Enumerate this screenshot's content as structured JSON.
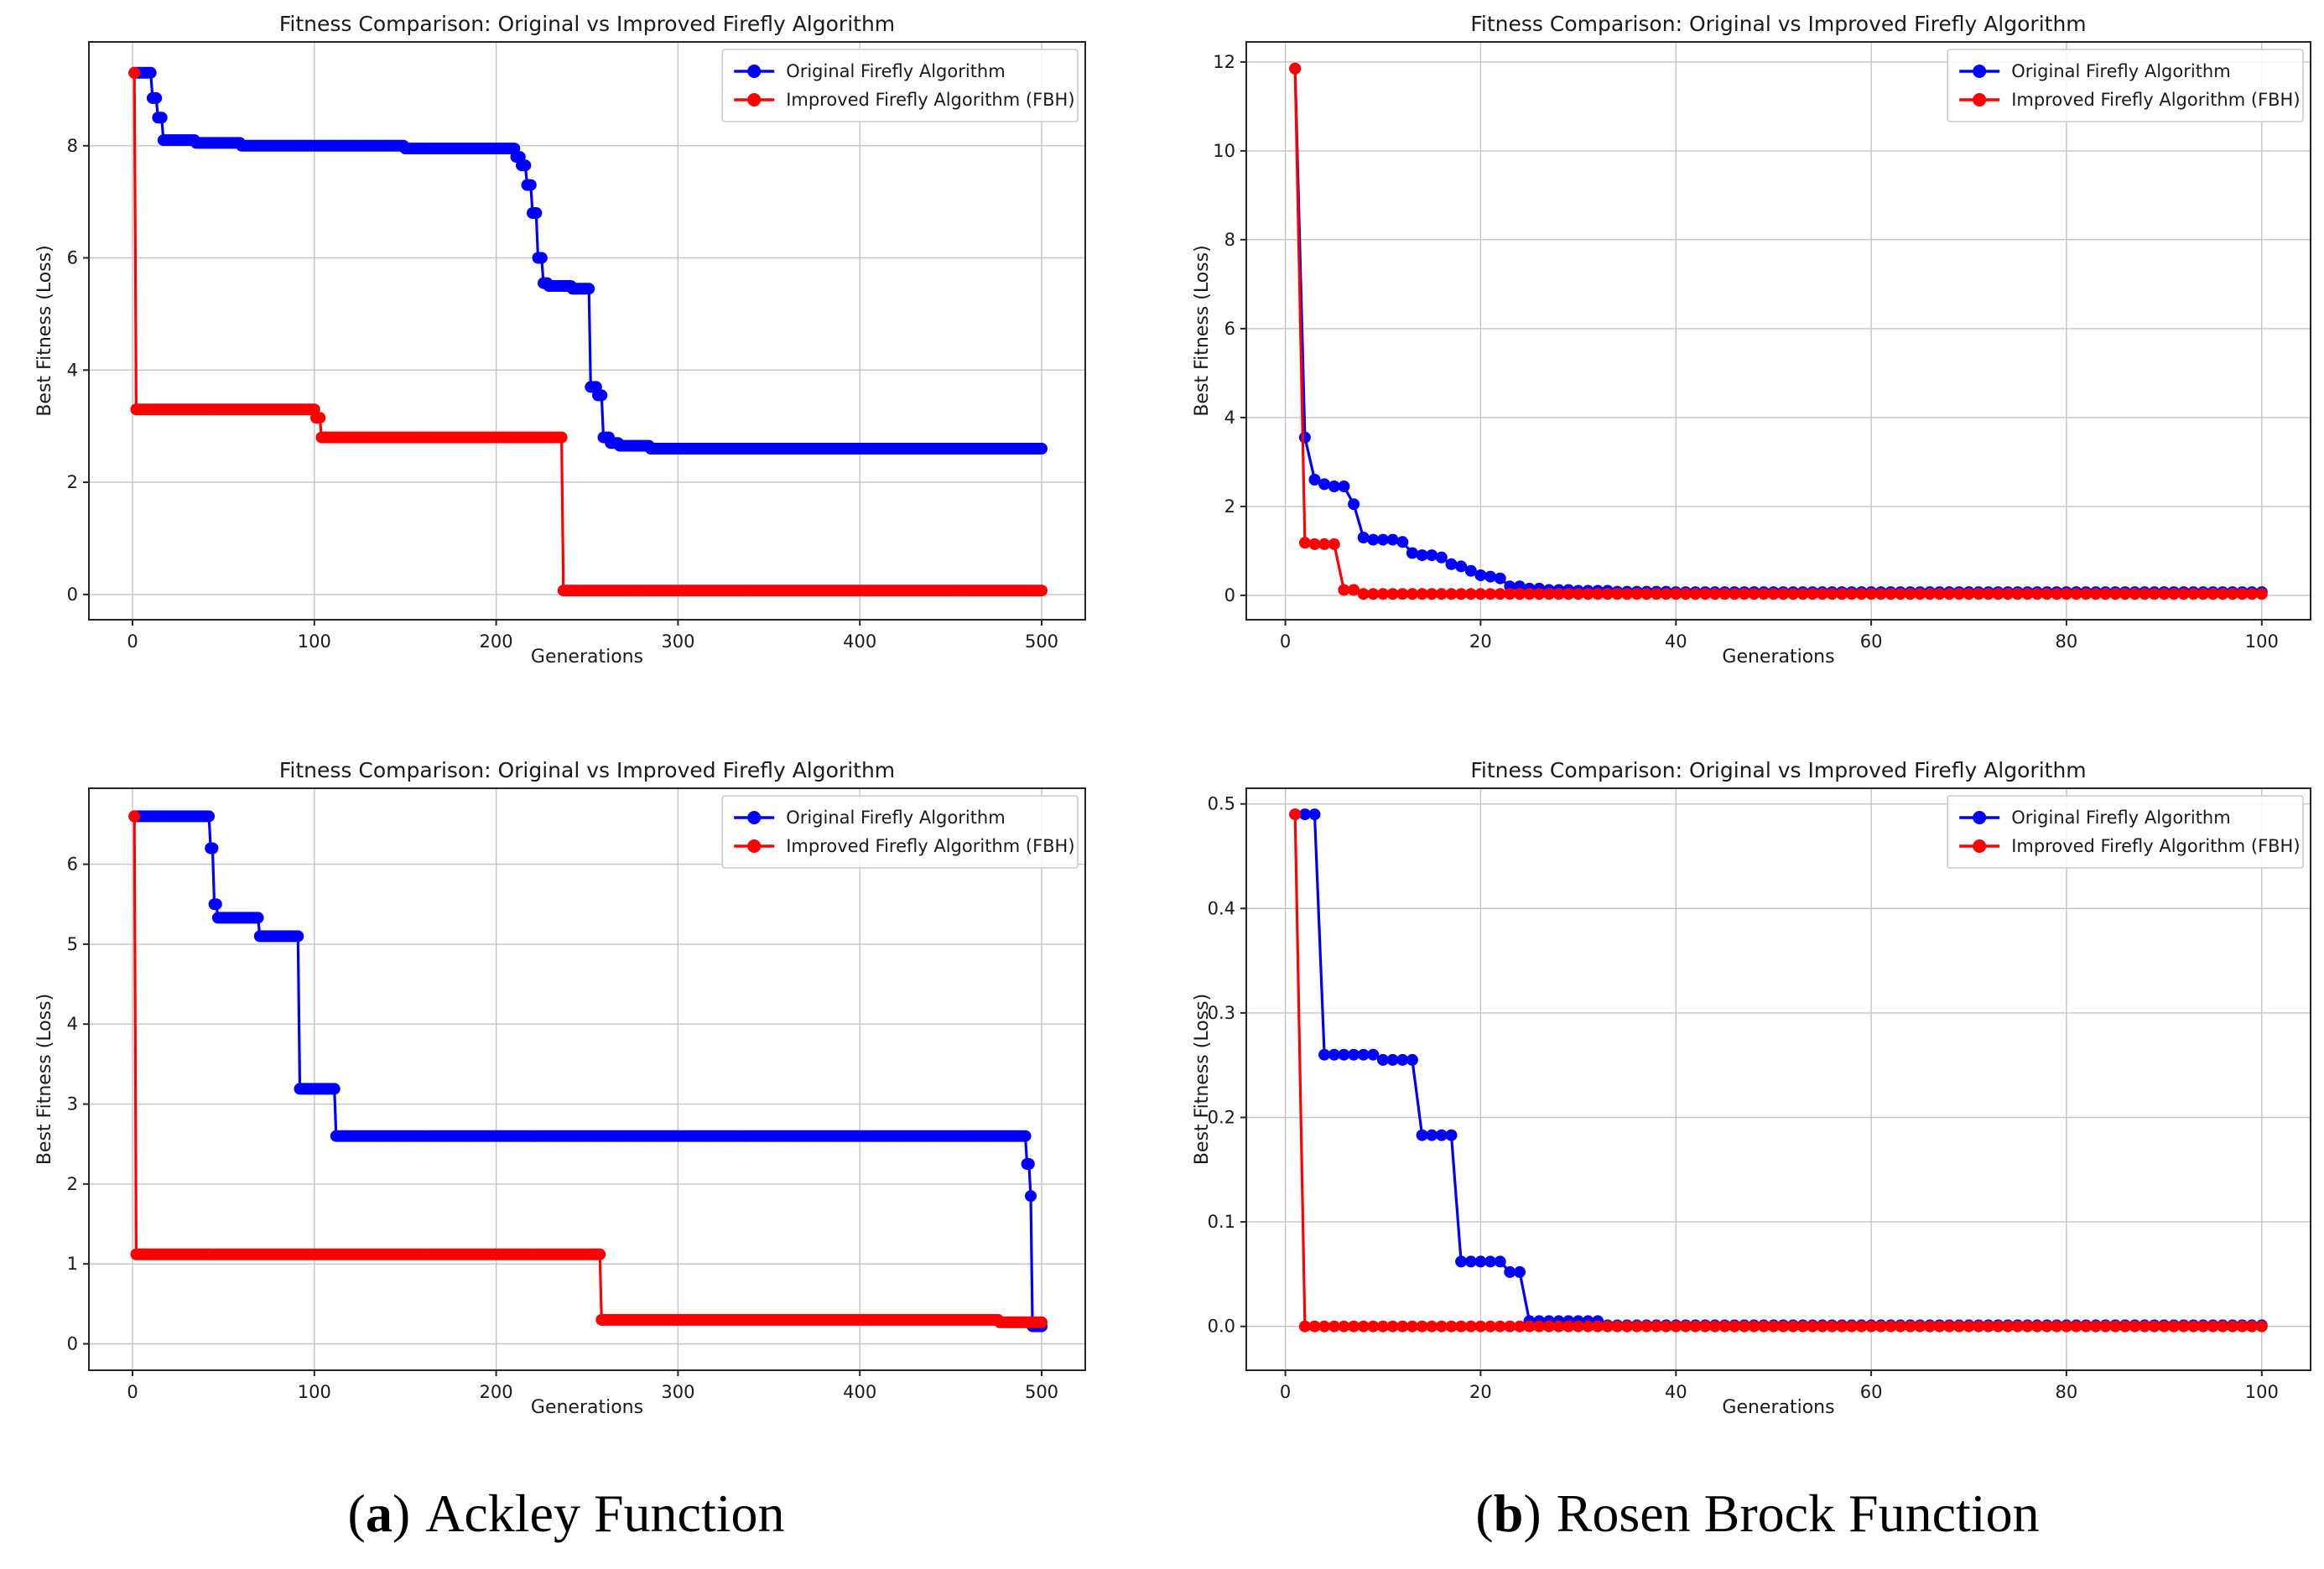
{
  "figure": {
    "title": "Fitness Comparison: Original vs Improved Firefly Algorithm",
    "xlabel": "Generations",
    "ylabel": "Best Fitness (Loss)",
    "legend": [
      "Original Firefly Algorithm",
      "Improved Firefly Algorithm (FBH)"
    ],
    "colors": {
      "original": "#0000ff",
      "improved": "#ff0000",
      "grid": "#c3c3c3",
      "spine": "#262626",
      "text": "#1a1a1a",
      "legend_border": "#cccccc",
      "background": "#ffffff"
    },
    "steps_format": "series.steps are [generation, value] breakpoints; value holds until the next breakpoint, markers at every generation"
  },
  "chart_data": [
    {
      "id": "ackley-run1",
      "type": "line",
      "title": "Fitness Comparison: Original vs Improved Firefly Algorithm",
      "xlabel": "Generations",
      "ylabel": "Best Fitness (Loss)",
      "legend_position": "upper right",
      "grid": true,
      "xlim": [
        -24,
        524
      ],
      "ylim": [
        -0.45,
        9.85
      ],
      "xticks": [
        0,
        100,
        200,
        300,
        400,
        500
      ],
      "yticks": [
        0,
        2,
        4,
        6,
        8
      ],
      "ytick_decimals": 0,
      "x_end": 500,
      "series": [
        {
          "name": "Original Firefly Algorithm",
          "color": "#0000ff",
          "steps": [
            [
              1,
              9.3
            ],
            [
              11,
              8.85
            ],
            [
              14,
              8.5
            ],
            [
              17,
              8.1
            ],
            [
              35,
              8.05
            ],
            [
              60,
              8.0
            ],
            [
              150,
              7.95
            ],
            [
              211,
              7.8
            ],
            [
              214,
              7.65
            ],
            [
              217,
              7.3
            ],
            [
              220,
              6.8
            ],
            [
              223,
              6.0
            ],
            [
              226,
              5.55
            ],
            [
              229,
              5.5
            ],
            [
              242,
              5.45
            ],
            [
              252,
              3.7
            ],
            [
              256,
              3.55
            ],
            [
              259,
              2.8
            ],
            [
              263,
              2.7
            ],
            [
              268,
              2.65
            ],
            [
              285,
              2.6
            ]
          ]
        },
        {
          "name": "Improved Firefly Algorithm (FBH)",
          "color": "#ff0000",
          "steps": [
            [
              1,
              9.3
            ],
            [
              2,
              3.3
            ],
            [
              101,
              3.15
            ],
            [
              104,
              2.8
            ],
            [
              237,
              0.07
            ]
          ]
        }
      ]
    },
    {
      "id": "rosenbrock-run1",
      "type": "line",
      "title": "Fitness Comparison: Original vs Improved Firefly Algorithm",
      "xlabel": "Generations",
      "ylabel": "Best Fitness (Loss)",
      "legend_position": "upper right",
      "grid": true,
      "xlim": [
        -4,
        105
      ],
      "ylim": [
        -0.55,
        12.45
      ],
      "xticks": [
        0,
        20,
        40,
        60,
        80,
        100
      ],
      "yticks": [
        0,
        2,
        4,
        6,
        8,
        10,
        12
      ],
      "ytick_decimals": 0,
      "x_end": 100,
      "series": [
        {
          "name": "Original Firefly Algorithm",
          "color": "#0000ff",
          "steps": [
            [
              1,
              11.85
            ],
            [
              2,
              3.55
            ],
            [
              3,
              2.6
            ],
            [
              4,
              2.5
            ],
            [
              5,
              2.45
            ],
            [
              7,
              2.05
            ],
            [
              8,
              1.3
            ],
            [
              9,
              1.25
            ],
            [
              12,
              1.2
            ],
            [
              13,
              0.95
            ],
            [
              14,
              0.9
            ],
            [
              16,
              0.85
            ],
            [
              17,
              0.7
            ],
            [
              18,
              0.65
            ],
            [
              19,
              0.55
            ],
            [
              20,
              0.45
            ],
            [
              21,
              0.42
            ],
            [
              22,
              0.38
            ],
            [
              23,
              0.2
            ],
            [
              25,
              0.15
            ],
            [
              27,
              0.12
            ],
            [
              30,
              0.1
            ],
            [
              34,
              0.08
            ],
            [
              40,
              0.07
            ]
          ]
        },
        {
          "name": "Improved Firefly Algorithm (FBH)",
          "color": "#ff0000",
          "steps": [
            [
              1,
              11.85
            ],
            [
              2,
              1.18
            ],
            [
              3,
              1.15
            ],
            [
              6,
              0.12
            ],
            [
              8,
              0.03
            ]
          ]
        }
      ]
    },
    {
      "id": "ackley-run2",
      "type": "line",
      "title": "Fitness Comparison: Original vs Improved Firefly Algorithm",
      "xlabel": "Generations",
      "ylabel": "Best Fitness (Loss)",
      "legend_position": "upper right",
      "grid": true,
      "xlim": [
        -24,
        524
      ],
      "ylim": [
        -0.33,
        6.95
      ],
      "xticks": [
        0,
        100,
        200,
        300,
        400,
        500
      ],
      "yticks": [
        0,
        1,
        2,
        3,
        4,
        5,
        6
      ],
      "ytick_decimals": 0,
      "x_end": 500,
      "series": [
        {
          "name": "Original Firefly Algorithm",
          "color": "#0000ff",
          "steps": [
            [
              1,
              6.6
            ],
            [
              43,
              6.2
            ],
            [
              45,
              5.5
            ],
            [
              47,
              5.33
            ],
            [
              70,
              5.1
            ],
            [
              92,
              3.19
            ],
            [
              112,
              2.6
            ],
            [
              492,
              2.25
            ],
            [
              494,
              1.85
            ],
            [
              495,
              0.22
            ]
          ]
        },
        {
          "name": "Improved Firefly Algorithm (FBH)",
          "color": "#ff0000",
          "steps": [
            [
              1,
              6.6
            ],
            [
              2,
              1.12
            ],
            [
              258,
              0.3
            ],
            [
              477,
              0.27
            ]
          ]
        }
      ]
    },
    {
      "id": "rosenbrock-run2",
      "type": "line",
      "title": "Fitness Comparison: Original vs Improved Firefly Algorithm",
      "xlabel": "Generations",
      "ylabel": "Best Fitness (Loss)",
      "legend_position": "upper right",
      "grid": true,
      "xlim": [
        -4,
        105
      ],
      "ylim": [
        -0.042,
        0.515
      ],
      "xticks": [
        0,
        20,
        40,
        60,
        80,
        100
      ],
      "yticks": [
        0.0,
        0.1,
        0.2,
        0.3,
        0.4,
        0.5
      ],
      "ytick_decimals": 1,
      "x_end": 100,
      "series": [
        {
          "name": "Original Firefly Algorithm",
          "color": "#0000ff",
          "steps": [
            [
              1,
              0.49
            ],
            [
              4,
              0.26
            ],
            [
              10,
              0.255
            ],
            [
              14,
              0.183
            ],
            [
              18,
              0.062
            ],
            [
              23,
              0.052
            ],
            [
              25,
              0.005
            ],
            [
              33,
              0.001
            ]
          ]
        },
        {
          "name": "Improved Firefly Algorithm (FBH)",
          "color": "#ff0000",
          "steps": [
            [
              1,
              0.49
            ],
            [
              2,
              0.0
            ]
          ]
        }
      ]
    }
  ],
  "captions": [
    {
      "open": "(",
      "letter": "a",
      "close": ")",
      "title": "Ackley Function"
    },
    {
      "open": "(",
      "letter": "b",
      "close": ")",
      "title": "Rosen Brock Function"
    }
  ]
}
